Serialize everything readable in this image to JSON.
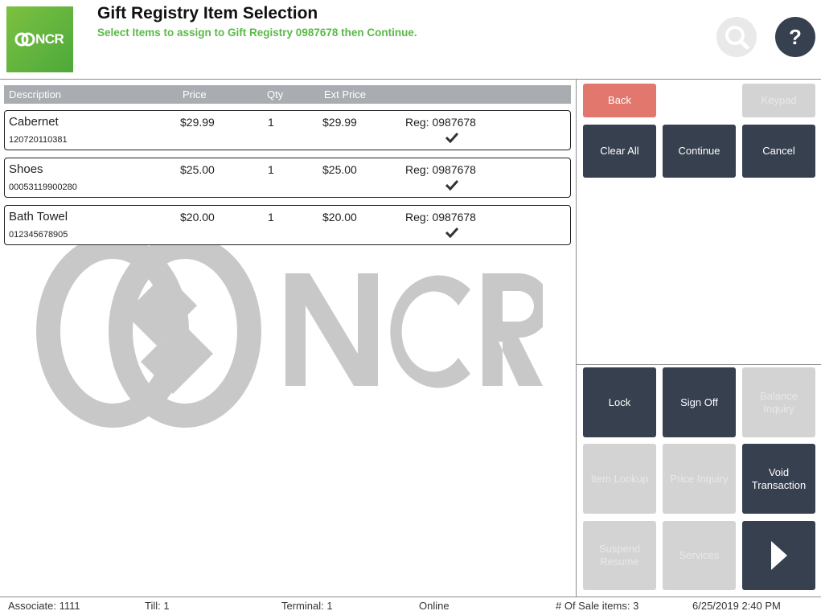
{
  "header": {
    "logo_text": "NCR",
    "title": "Gift Registry Item Selection",
    "subtitle": "Select Items to assign to Gift Registry 0987678 then Continue.",
    "help_label": "?"
  },
  "table": {
    "columns": [
      "Description",
      "Price",
      "Qty",
      "Ext Price"
    ],
    "rows": [
      {
        "description": "Cabernet",
        "sku": "120720110381",
        "price": "$29.99",
        "qty": "1",
        "ext_price": "$29.99",
        "registry": "Reg: 0987678"
      },
      {
        "description": "Shoes",
        "sku": "00053119900280",
        "price": "$25.00",
        "qty": "1",
        "ext_price": "$25.00",
        "registry": "Reg: 0987678"
      },
      {
        "description": "Bath Towel",
        "sku": "012345678905",
        "price": "$20.00",
        "qty": "1",
        "ext_price": "$20.00",
        "registry": "Reg: 0987678"
      }
    ]
  },
  "watermark": {
    "text": "NCR"
  },
  "top_buttons": {
    "back": "Back",
    "keypad": "Keypad",
    "clear_all": "Clear All",
    "continue": "Continue",
    "cancel": "Cancel"
  },
  "bottom_buttons": {
    "lock": "Lock",
    "sign_off": "Sign Off",
    "balance_inquiry": "Balance Inquiry",
    "item_lookup": "Item Lookup",
    "price_inquiry": "Price Inquiry",
    "void_transaction": "Void Transaction",
    "suspend_resume": "Suspend Resume",
    "services": "Services",
    "next_icon": "play-arrow-icon"
  },
  "footer": {
    "associate": "Associate: 1111",
    "till": "Till: 1",
    "terminal": "Terminal: 1",
    "status": "Online",
    "sale_items": "# Of Sale items: 3",
    "datetime": "6/25/2019 2:40 PM"
  },
  "colors": {
    "accent_green": "#5ab948",
    "dark_button": "#36404f",
    "back_button": "#e2776e",
    "disabled_button": "#d3d3d3"
  }
}
